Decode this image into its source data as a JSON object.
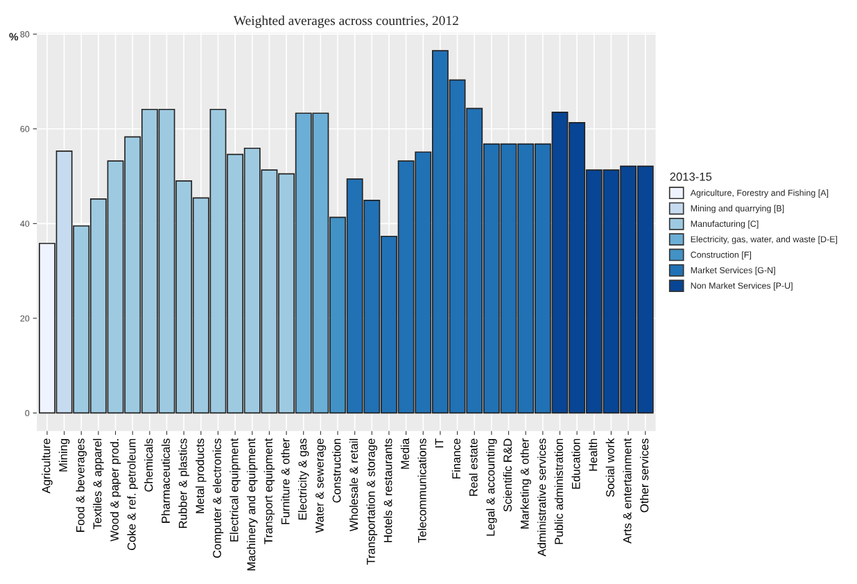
{
  "chart_data": {
    "type": "bar",
    "title": "Weighted averages across countries, 2012",
    "ylabel": "%",
    "legend_title": "2013-15",
    "categories": [
      "Agriculture",
      "Mining",
      "Food & beverages",
      "Textiles & apparel",
      "Wood & paper prod.",
      "Coke & ref. petroleum",
      "Chemicals",
      "Pharmaceuticals",
      "Rubber & plastics",
      "Metal products",
      "Computer & electronics",
      "Electrical equipment",
      "Machinery and equipment",
      "Transport equipment",
      "Furniture & other",
      "Electricity & gas",
      "Water & sewerage",
      "Construction",
      "Wholesale & retail",
      "Transportation & storage",
      "Hotels & restaurants",
      "Media",
      "Telecommunications",
      "IT",
      "Finance",
      "Real estate",
      "Legal & accounting",
      "Scientific R&D",
      "Marketing & other",
      "Administrative services",
      "Public administration",
      "Education",
      "Health",
      "Social work",
      "Arts & entertainment",
      "Other services"
    ],
    "series": [
      {
        "name": "Agriculture, Forestry and Fishing [A]",
        "color": "#eff3ff",
        "values": [
          35.8,
          null,
          null,
          null,
          null,
          null,
          null,
          null,
          null,
          null,
          null,
          null,
          null,
          null,
          null,
          null,
          null,
          null,
          null,
          null,
          null,
          null,
          null,
          null,
          null,
          null,
          null,
          null,
          null,
          null,
          null,
          null,
          null,
          null,
          null,
          null
        ]
      },
      {
        "name": "Mining and quarrying [B]",
        "color": "#c6dbef",
        "values": [
          null,
          55.3,
          null,
          null,
          null,
          null,
          null,
          null,
          null,
          null,
          null,
          null,
          null,
          null,
          null,
          null,
          null,
          null,
          null,
          null,
          null,
          null,
          null,
          null,
          null,
          null,
          null,
          null,
          null,
          null,
          null,
          null,
          null,
          null,
          null,
          null
        ]
      },
      {
        "name": "Manufacturing [C]",
        "color": "#9ecae1",
        "values": [
          null,
          null,
          39.5,
          45.2,
          53.2,
          58.3,
          64.1,
          64.1,
          49.0,
          45.4,
          64.1,
          54.6,
          55.9,
          51.3,
          50.5,
          null,
          null,
          null,
          null,
          null,
          null,
          null,
          null,
          null,
          null,
          null,
          null,
          null,
          null,
          null,
          null,
          null,
          null,
          null,
          null,
          null
        ]
      },
      {
        "name": "Electricity, gas, water, and waste [D-E]",
        "color": "#6baed6",
        "values": [
          null,
          null,
          null,
          null,
          null,
          null,
          null,
          null,
          null,
          null,
          null,
          null,
          null,
          null,
          null,
          63.3,
          63.3,
          null,
          null,
          null,
          null,
          null,
          null,
          null,
          null,
          null,
          null,
          null,
          null,
          null,
          null,
          null,
          null,
          null,
          null,
          null
        ]
      },
      {
        "name": "Construction [F]",
        "color": "#4292c6",
        "values": [
          null,
          null,
          null,
          null,
          null,
          null,
          null,
          null,
          null,
          null,
          null,
          null,
          null,
          null,
          null,
          null,
          null,
          41.3,
          null,
          null,
          null,
          null,
          null,
          null,
          null,
          null,
          null,
          null,
          null,
          null,
          null,
          null,
          null,
          null,
          null,
          null
        ]
      },
      {
        "name": "Market Services [G-N]",
        "color": "#2171b5",
        "values": [
          null,
          null,
          null,
          null,
          null,
          null,
          null,
          null,
          null,
          null,
          null,
          null,
          null,
          null,
          null,
          null,
          null,
          null,
          49.4,
          44.9,
          37.3,
          53.2,
          55.1,
          76.5,
          70.3,
          64.3,
          56.8,
          56.8,
          56.8,
          56.8,
          null,
          null,
          null,
          null,
          null,
          null
        ]
      },
      {
        "name": "Non Market Services [P-U]",
        "color": "#084594",
        "values": [
          null,
          null,
          null,
          null,
          null,
          null,
          null,
          null,
          null,
          null,
          null,
          null,
          null,
          null,
          null,
          null,
          null,
          null,
          null,
          null,
          null,
          null,
          null,
          null,
          null,
          null,
          null,
          null,
          null,
          null,
          63.5,
          61.3,
          51.3,
          51.3,
          52.1,
          52.1
        ]
      }
    ],
    "ylim": [
      -3.8,
      80.3
    ],
    "yticks": [
      0,
      20,
      40,
      60,
      80
    ],
    "grid": true,
    "legend": "right"
  }
}
